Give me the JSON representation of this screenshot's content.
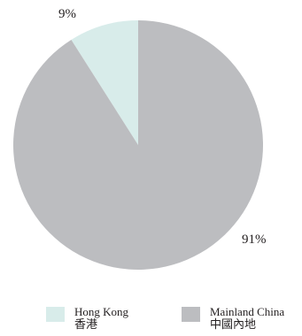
{
  "chart_data": {
    "type": "pie",
    "slices": [
      {
        "label": "Hong Kong",
        "label_zh": "香港",
        "value": 9,
        "value_label": "9%",
        "color": "#d8ecea"
      },
      {
        "label": "Mainland China",
        "label_zh": "中國內地",
        "value": 91,
        "value_label": "91%",
        "color": "#bcbdc0"
      }
    ],
    "title": "",
    "legend_position": "bottom",
    "start_angle_deg": 0,
    "direction": "counterclockwise"
  }
}
